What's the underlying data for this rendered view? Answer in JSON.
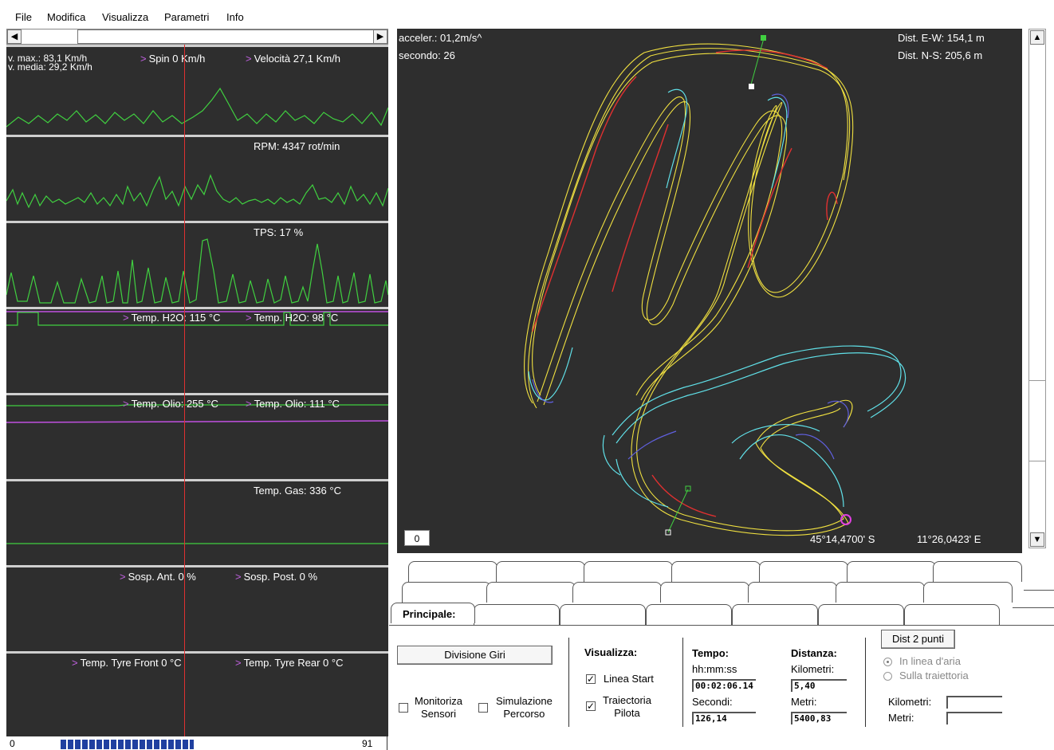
{
  "menu": [
    "File",
    "Modifica",
    "Visualizza",
    "Parametri",
    "Info"
  ],
  "panels": {
    "speed": {
      "vmax": "v. max.: 83,1 Km/h",
      "vmedia": "v. media: 29,2 Km/h",
      "spin": "Spin  0 Km/h",
      "velocita": "Velocità  27,1 Km/h"
    },
    "rpm": "RPM:  4347 rot/min",
    "tps": "TPS:  17 %",
    "h2o": {
      "a": "Temp. H2O:  115 °C",
      "b": "Temp. H2O:  98 °C"
    },
    "olio": {
      "a": "Temp. Olio:  255 °C",
      "b": "Temp. Olio:  111 °C"
    },
    "gas": "Temp. Gas:  336 °C",
    "sosp": {
      "a": "Sosp. Ant.   0 %",
      "b": "Sosp. Post.   0 %"
    },
    "tyre": {
      "a": "Temp. Tyre Front   0 °C",
      "b": "Temp. Tyre Rear   0 °C"
    }
  },
  "timeline": {
    "start": "0",
    "end": "91",
    "progress": 0.5
  },
  "map": {
    "accel": "acceler.: 01,2m/s^",
    "secondo": "secondo: 26",
    "dist_ew": "Dist. E-W: 154,1 m",
    "dist_ns": "Dist. N-S: 205,6 m",
    "lat": "45°14,4700' S",
    "lon": "11°26,0423' E",
    "zoom": "0",
    "colors": {
      "bg": "#2e2e2e",
      "yellow": "#f0e040",
      "red": "#e03030",
      "cyan": "#60e0e8",
      "blue": "#6060e0"
    }
  },
  "tabs": {
    "active": "Principale:"
  },
  "controls": {
    "divisione_giri": "Divisione Giri",
    "monitorizza": [
      "Monitoriza",
      "Sensori"
    ],
    "simulazione": [
      "Simulazione",
      "Percorso"
    ],
    "visualizza": "Visualizza:",
    "linea_start": "Linea Start",
    "traiettoria": [
      "Traiectoria",
      "Pilota"
    ],
    "tempo": "Tempo:",
    "hhmmss": "hh:mm:ss",
    "tempo_val": "00:02:06.14",
    "secondi": "Secondi:",
    "secondi_val": "126,14",
    "distanza": "Distanza:",
    "kilometri": "Kilometri:",
    "km_val": "5,40",
    "metri": "Metri:",
    "metri_val": "5400,83",
    "dist2punti": "Dist 2 punti",
    "in_linea": "In linea d'aria",
    "sulla": "Sulla traiettoria",
    "kilometri2": "Kilometri:",
    "metri2": "Metri:"
  }
}
